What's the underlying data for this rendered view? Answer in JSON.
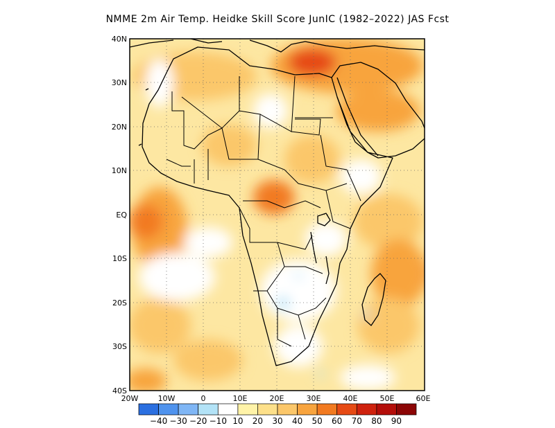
{
  "title": "NMME  2m Air Temp. Heidke Skill Score JunIC (1982–2022) JAS Fcst",
  "map": {
    "lon_range": [
      -20,
      60
    ],
    "lat_range": [
      -40,
      40
    ],
    "grid": "dotted",
    "lat_labels": [
      "40N",
      "30N",
      "20N",
      "10N",
      "EQ",
      "10S",
      "20S",
      "30S",
      "40S"
    ],
    "lon_labels": [
      "20W",
      "10W",
      "0",
      "10E",
      "20E",
      "30E",
      "40E",
      "50E",
      "60E"
    ]
  },
  "colorbar": {
    "labels": [
      "−40",
      "−30",
      "−20",
      "−10",
      "10",
      "20",
      "30",
      "40",
      "50",
      "60",
      "70",
      "80",
      "90"
    ],
    "colors": [
      "#2b6fe0",
      "#4f93ee",
      "#7fb6f5",
      "#b3e3f7",
      "#ffffff",
      "#fff3a8",
      "#fde08a",
      "#fbc76a",
      "#f8a43e",
      "#f27a20",
      "#e64a14",
      "#cf220e",
      "#b40e0a",
      "#8c0606"
    ]
  }
}
